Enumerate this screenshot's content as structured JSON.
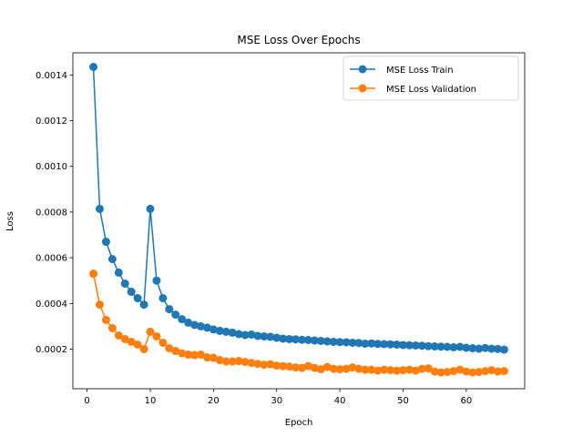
{
  "chart_data": {
    "type": "line",
    "title": "MSE Loss Over Epochs",
    "xlabel": "Epoch",
    "ylabel": "Loss",
    "xlim": [
      -2.25,
      69.25
    ],
    "ylim": [
      2.67e-05,
      0.001497
    ],
    "xticks": [
      0,
      10,
      20,
      30,
      40,
      50,
      60
    ],
    "xtick_labels": [
      "0",
      "10",
      "20",
      "30",
      "40",
      "50",
      "60"
    ],
    "yticks": [
      0.0002,
      0.0004,
      0.0006,
      0.0008,
      0.001,
      0.0012,
      0.0014
    ],
    "ytick_labels": [
      "0.0002",
      "0.0004",
      "0.0006",
      "0.0008",
      "0.0010",
      "0.0012",
      "0.0014"
    ],
    "grid": false,
    "legend_position": "top-right",
    "x": [
      1,
      2,
      3,
      4,
      5,
      6,
      7,
      8,
      9,
      10,
      11,
      12,
      13,
      14,
      15,
      16,
      17,
      18,
      19,
      20,
      21,
      22,
      23,
      24,
      25,
      26,
      27,
      28,
      29,
      30,
      31,
      32,
      33,
      34,
      35,
      36,
      37,
      38,
      39,
      40,
      41,
      42,
      43,
      44,
      45,
      46,
      47,
      48,
      49,
      50,
      51,
      52,
      53,
      54,
      55,
      56,
      57,
      58,
      59,
      60,
      61,
      62,
      63,
      64,
      65,
      66
    ],
    "series": [
      {
        "name": "MSE Loss Train",
        "color": "#1f77b4",
        "marker": "circle",
        "values": [
          0.001435,
          0.000814,
          0.00067,
          0.000594,
          0.000535,
          0.000487,
          0.000451,
          0.000423,
          0.000395,
          0.000814,
          0.0005,
          0.000423,
          0.000375,
          0.000351,
          0.000331,
          0.000316,
          0.000306,
          0.0003,
          0.000294,
          0.000286,
          0.00028,
          0.000276,
          0.000272,
          0.000266,
          0.000262,
          0.000264,
          0.000258,
          0.000256,
          0.000254,
          0.00025,
          0.000246,
          0.000244,
          0.000243,
          0.000241,
          0.00024,
          0.000238,
          0.000236,
          0.000234,
          0.000232,
          0.000231,
          0.00023,
          0.000228,
          0.000227,
          0.000224,
          0.000225,
          0.000223,
          0.000222,
          0.000221,
          0.00022,
          0.000218,
          0.000217,
          0.000216,
          0.000215,
          0.000213,
          0.000212,
          0.000211,
          0.00021,
          0.000208,
          0.00021,
          0.000206,
          0.000204,
          0.000202,
          0.000205,
          0.000202,
          0.000201,
          0.000198
        ]
      },
      {
        "name": "MSE Loss Validation",
        "color": "#ff7f0e",
        "marker": "circle",
        "values": [
          0.00053,
          0.000395,
          0.000328,
          0.000292,
          0.00026,
          0.000244,
          0.000232,
          0.00022,
          0.0002,
          0.000276,
          0.000256,
          0.000228,
          0.000204,
          0.000192,
          0.000182,
          0.000176,
          0.000174,
          0.000176,
          0.000164,
          0.000162,
          0.000152,
          0.000146,
          0.000146,
          0.000148,
          0.000144,
          0.00014,
          0.000136,
          0.000132,
          0.000134,
          0.000128,
          0.000126,
          0.000124,
          0.00012,
          0.000118,
          0.000126,
          0.000118,
          0.000112,
          0.000122,
          0.000114,
          0.000112,
          0.000114,
          0.00012,
          0.000114,
          0.00011,
          0.00011,
          0.000106,
          0.00011,
          0.000108,
          0.000106,
          0.000108,
          0.00011,
          0.000106,
          0.000114,
          0.000116,
          0.000102,
          9.8e-05,
          0.0001,
          0.000104,
          0.00011,
          0.000102,
          9.8e-05,
          0.0001,
          0.000104,
          0.000108,
          0.000102,
          0.000104
        ]
      }
    ]
  }
}
